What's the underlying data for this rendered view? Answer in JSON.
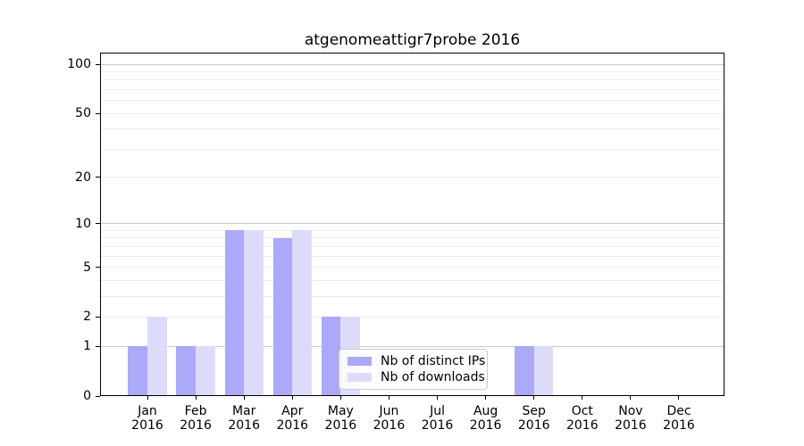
{
  "chart_data": {
    "type": "bar",
    "title": "atgenomeattigr7probe 2016",
    "categories": [
      "Jan",
      "Feb",
      "Mar",
      "Apr",
      "May",
      "Jun",
      "Jul",
      "Aug",
      "Sep",
      "Oct",
      "Nov",
      "Dec"
    ],
    "category_year": "2016",
    "series": [
      {
        "name": "Nb of distinct IPs",
        "color": "#aaaaf8",
        "values": [
          1,
          1,
          9,
          8,
          2,
          0,
          0,
          0,
          1,
          0,
          0,
          0
        ]
      },
      {
        "name": "Nb of downloads",
        "color": "#dcdcfa",
        "values": [
          2,
          1,
          9,
          9,
          2,
          0,
          0,
          0,
          1,
          0,
          0,
          0
        ]
      }
    ],
    "y_axis": {
      "scale": "log1p",
      "tick_labels": [
        0,
        1,
        2,
        5,
        10,
        20,
        50,
        100
      ],
      "major_gridlines": [
        1,
        10,
        100
      ],
      "minor_gridlines": [
        2,
        3,
        4,
        5,
        6,
        7,
        8,
        9,
        20,
        30,
        40,
        50,
        60,
        70,
        80,
        90
      ],
      "ylim": [
        0,
        115
      ]
    },
    "legend": {
      "position": "lower center"
    },
    "colors": {
      "minor_grid": "#ececec",
      "major_grid": "#c9c9c9",
      "spine": "#000000",
      "text": "#000000",
      "background": "#ffffff"
    }
  }
}
